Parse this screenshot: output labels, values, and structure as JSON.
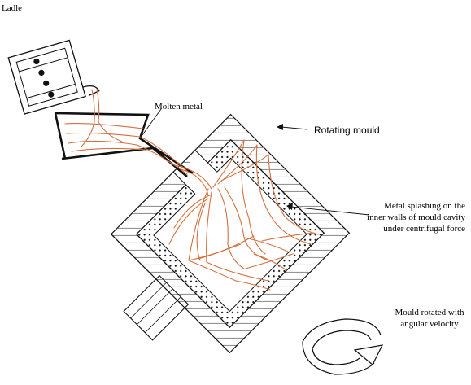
{
  "diagram": {
    "labels": {
      "ladle": "Ladle",
      "molten_metal": "Molten metal",
      "rotating_mould": "Rotating mould",
      "splash_line1": "Metal splashing on the",
      "splash_line2": "inner walls of mould cavity",
      "splash_line3": "under centrifugal force",
      "rotation_line1": "Mould rotated with",
      "rotation_line2": "angular velocity"
    },
    "colors": {
      "ink": "#111111",
      "molten_metal": "#d4703f",
      "background": "#ffffff"
    }
  }
}
